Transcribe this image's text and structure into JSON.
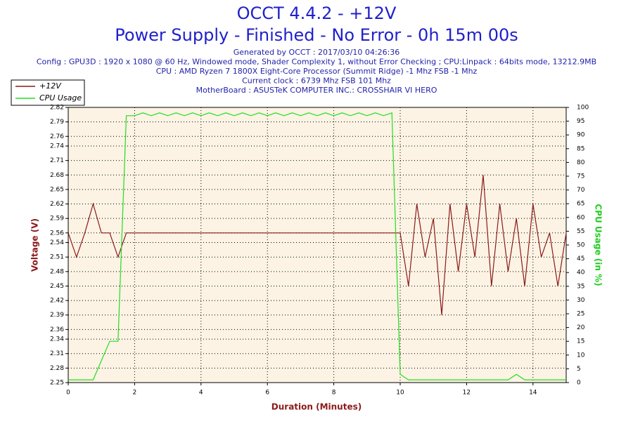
{
  "chart_data": {
    "type": "line",
    "title": "OCCT 4.4.2 - +12V",
    "subtitle": "Power Supply - Finished - No Error - 0h 15m 00s",
    "info": [
      "Generated by OCCT : 2017/03/10 04:26:36",
      "Config : GPU3D : 1920 x 1080 @ 60 Hz, Windowed mode, Shader Complexity 1, without Error Checking ; CPU:Linpack : 64bits mode, 13212.9MB",
      "CPU : AMD Ryzen 7 1800X Eight-Core Processor (Summit Ridge) -1 Mhz FSB -1 Mhz",
      "Current clock : 6739 Mhz FSB 101 Mhz",
      "MotherBoard : ASUSTeK COMPUTER INC.: CROSSHAIR VI HERO"
    ],
    "xlabel": "Duration (Minutes)",
    "ylabel": "Voltage (V)",
    "y2label": "CPU Usage (in %)",
    "x": [
      0,
      0.25,
      0.5,
      0.75,
      1,
      1.25,
      1.5,
      1.75,
      2,
      2.25,
      2.5,
      2.75,
      3,
      3.25,
      3.5,
      3.75,
      4,
      4.25,
      4.5,
      4.75,
      5,
      5.25,
      5.5,
      5.75,
      6,
      6.25,
      6.5,
      6.75,
      7,
      7.25,
      7.5,
      7.75,
      8,
      8.25,
      8.5,
      8.75,
      9,
      9.25,
      9.5,
      9.75,
      10,
      10.25,
      10.5,
      10.75,
      11,
      11.25,
      11.5,
      11.75,
      12,
      12.25,
      12.5,
      12.75,
      13,
      13.25,
      13.5,
      13.75,
      14,
      14.25,
      14.5,
      14.75,
      15
    ],
    "series": [
      {
        "name": "+12V",
        "color": "#8b1a1a",
        "values": [
          2.56,
          2.51,
          2.56,
          2.62,
          2.56,
          2.56,
          2.51,
          2.56,
          2.56,
          2.56,
          2.56,
          2.56,
          2.56,
          2.56,
          2.56,
          2.56,
          2.56,
          2.56,
          2.56,
          2.56,
          2.56,
          2.56,
          2.56,
          2.56,
          2.56,
          2.56,
          2.56,
          2.56,
          2.56,
          2.56,
          2.56,
          2.56,
          2.56,
          2.56,
          2.56,
          2.56,
          2.56,
          2.56,
          2.56,
          2.56,
          2.56,
          2.45,
          2.62,
          2.51,
          2.59,
          2.39,
          2.62,
          2.48,
          2.62,
          2.51,
          2.68,
          2.45,
          2.62,
          2.48,
          2.59,
          2.45,
          2.62,
          2.51,
          2.56,
          2.45,
          2.56
        ]
      },
      {
        "name": "CPU Usage",
        "color": "#22dd22",
        "axis": "y2",
        "values": [
          1,
          1,
          1,
          1,
          8,
          15,
          15,
          97,
          97,
          98,
          97,
          98,
          97,
          98,
          97,
          98,
          97,
          98,
          97,
          98,
          97,
          98,
          97,
          98,
          97,
          98,
          97,
          98,
          97,
          98,
          97,
          98,
          97,
          98,
          97,
          98,
          97,
          98,
          97,
          98,
          3,
          1,
          1,
          1,
          1,
          1,
          1,
          1,
          1,
          1,
          1,
          1,
          1,
          1,
          3,
          1,
          1,
          1,
          1,
          1,
          1
        ]
      }
    ],
    "xlim": [
      0,
      15
    ],
    "xticks": [
      0,
      2,
      4,
      6,
      8,
      10,
      12,
      14
    ],
    "ylim": [
      2.25,
      2.82
    ],
    "yticks": [
      2.25,
      2.28,
      2.31,
      2.34,
      2.36,
      2.39,
      2.42,
      2.45,
      2.48,
      2.51,
      2.54,
      2.56,
      2.59,
      2.62,
      2.65,
      2.68,
      2.71,
      2.74,
      2.76,
      2.79,
      2.82
    ],
    "y2lim": [
      0,
      100
    ],
    "y2ticks": [
      0,
      5,
      10,
      15,
      20,
      25,
      30,
      35,
      40,
      45,
      50,
      55,
      60,
      65,
      70,
      75,
      80,
      85,
      90,
      95,
      100
    ],
    "grid": true,
    "legend": "top-left"
  }
}
